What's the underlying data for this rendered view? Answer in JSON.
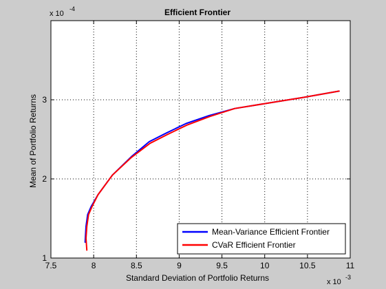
{
  "chart_data": {
    "type": "line",
    "title": "Efficient Frontier",
    "xlabel": "Standard Deviation of Portfolio Returns",
    "ylabel": "Mean of Portfolio Returns",
    "x_multiplier": "x 10",
    "x_exponent": "-3",
    "y_multiplier": "x 10",
    "y_exponent": "-4",
    "xlim": [
      7.5,
      11
    ],
    "ylim": [
      1,
      4
    ],
    "xticks": [
      "7.5",
      "8",
      "8.5",
      "9",
      "9.5",
      "10",
      "10.5",
      "11"
    ],
    "xtick_values": [
      7.5,
      8,
      8.5,
      9,
      9.5,
      10,
      10.5,
      11
    ],
    "yticks": [
      "1",
      "2",
      "3"
    ],
    "ytick_values": [
      1,
      2,
      3
    ],
    "grid": true,
    "legend_position": "bottom-right",
    "series": [
      {
        "name": "Mean-Variance Efficient Frontier",
        "color": "#0000ff",
        "x": [
          7.9,
          7.91,
          7.93,
          7.97,
          8.05,
          8.22,
          8.44,
          8.65,
          8.85,
          9.08,
          9.35,
          9.65,
          10.05,
          10.45,
          10.87
        ],
        "y": [
          1.2,
          1.4,
          1.55,
          1.65,
          1.8,
          2.05,
          2.28,
          2.47,
          2.58,
          2.7,
          2.8,
          2.89,
          2.96,
          3.03,
          3.11
        ]
      },
      {
        "name": "CVaR Efficient Frontier",
        "color": "#ff0000",
        "x": [
          7.92,
          7.91,
          7.92,
          7.94,
          7.98,
          8.05,
          8.22,
          8.44,
          8.66,
          8.86,
          9.09,
          9.36,
          9.65,
          10.05,
          10.45,
          10.87
        ],
        "y": [
          1.1,
          1.25,
          1.4,
          1.55,
          1.65,
          1.8,
          2.05,
          2.27,
          2.45,
          2.56,
          2.68,
          2.79,
          2.89,
          2.96,
          3.03,
          3.11
        ]
      }
    ]
  }
}
